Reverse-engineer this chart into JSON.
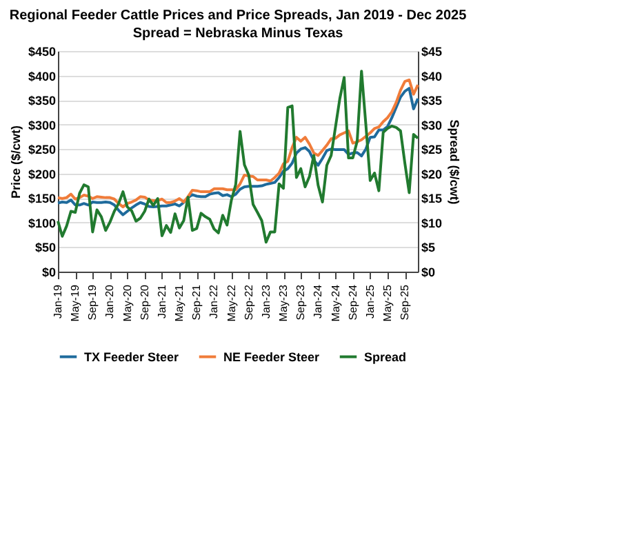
{
  "chart_data": {
    "type": "line",
    "title": "Regional Feeder Cattle Prices and Price Spreads, Jan 2019 - Dec 2025",
    "subtitle": "Spread = Nebraska Minus Texas",
    "ylabel": "Price ($/cwt)",
    "y2label": "Spread ($/cwt)",
    "x": [
      "2019-01",
      "2019-02",
      "2019-03",
      "2019-04",
      "2019-05",
      "2019-06",
      "2019-07",
      "2019-08",
      "2019-09",
      "2019-10",
      "2019-11",
      "2019-12",
      "2020-01",
      "2020-02",
      "2020-03",
      "2020-04",
      "2020-05",
      "2020-06",
      "2020-07",
      "2020-08",
      "2020-09",
      "2020-10",
      "2020-11",
      "2020-12",
      "2021-01",
      "2021-02",
      "2021-03",
      "2021-04",
      "2021-05",
      "2021-06",
      "2021-07",
      "2021-08",
      "2021-09",
      "2021-10",
      "2021-11",
      "2021-12",
      "2022-01",
      "2022-02",
      "2022-03",
      "2022-04",
      "2022-05",
      "2022-06",
      "2022-07",
      "2022-08",
      "2022-09",
      "2022-10",
      "2022-11",
      "2022-12",
      "2023-01",
      "2023-02",
      "2023-03",
      "2023-04",
      "2023-05",
      "2023-06",
      "2023-07",
      "2023-08",
      "2023-09",
      "2023-10",
      "2023-11",
      "2023-12",
      "2024-01",
      "2024-02",
      "2024-03",
      "2024-04",
      "2024-05",
      "2024-06",
      "2024-07",
      "2024-08",
      "2024-09",
      "2024-10",
      "2024-11",
      "2024-12",
      "2025-01",
      "2025-02",
      "2025-03",
      "2025-04",
      "2025-05",
      "2025-06",
      "2025-07",
      "2025-08",
      "2025-09",
      "2025-10",
      "2025-11",
      "2025-12"
    ],
    "series": [
      {
        "name": "TX Feeder Steer",
        "color": "#1f6b9c",
        "values": [
          140,
          142,
          141,
          146,
          136,
          136,
          139,
          136,
          142,
          141,
          141,
          142,
          141,
          136,
          125,
          116,
          123,
          130,
          136,
          141,
          138,
          133,
          132,
          133,
          134,
          134,
          136,
          138,
          134,
          141,
          151,
          157,
          154,
          153,
          153,
          158,
          160,
          161,
          155,
          157,
          153,
          158,
          168,
          173,
          174,
          174,
          174,
          175,
          178,
          180,
          182,
          192,
          205,
          210,
          221,
          242,
          250,
          253,
          245,
          227,
          217,
          231,
          247,
          250,
          249,
          249,
          249,
          239,
          242,
          243,
          236,
          250,
          274,
          275,
          289,
          289,
          296,
          314,
          335,
          356,
          368,
          374,
          332,
          353
        ]
      },
      {
        "name": "NE Feeder Steer",
        "color": "#f07c3a",
        "values": [
          151,
          149,
          151,
          158,
          148,
          151,
          156,
          154,
          149,
          153,
          152,
          151,
          151,
          148,
          139,
          132,
          139,
          142,
          146,
          153,
          152,
          146,
          145,
          145,
          148,
          141,
          141,
          144,
          149,
          142,
          153,
          166,
          165,
          163,
          163,
          163,
          169,
          169,
          169,
          167,
          167,
          167,
          179,
          197,
          195,
          194,
          187,
          187,
          187,
          185,
          192,
          201,
          220,
          225,
          253,
          274,
          266,
          274,
          260,
          242,
          237,
          247,
          258,
          271,
          272,
          279,
          283,
          287,
          262,
          265,
          269,
          276,
          283,
          292,
          295,
          306,
          314,
          326,
          345,
          370,
          388,
          391,
          362,
          381
        ]
      },
      {
        "name": "Spread",
        "color": "#217a2f",
        "axis": "y2",
        "values": [
          10.3,
          7.2,
          9.3,
          12.3,
          12.1,
          16.0,
          17.7,
          17.3,
          8.1,
          12.6,
          11.2,
          8.4,
          10.1,
          12.3,
          13.9,
          16.3,
          13.2,
          12.4,
          10.3,
          10.9,
          12.3,
          14.8,
          13.5,
          14.9,
          7.3,
          9.4,
          8.0,
          11.8,
          8.9,
          10.4,
          15.2,
          8.4,
          8.8,
          11.9,
          11.2,
          10.7,
          8.7,
          7.9,
          11.5,
          9.5,
          14.6,
          17.8,
          28.6,
          21.8,
          19.7,
          13.7,
          12.1,
          10.4,
          6.0,
          8.1,
          8.1,
          17.9,
          17.0,
          33.5,
          33.8,
          19.2,
          21.0,
          17.3,
          19.4,
          23.7,
          17.6,
          14.2,
          21.7,
          23.7,
          29.5,
          35.3,
          39.6,
          23.2,
          23.2,
          26.6,
          40.9,
          30.0,
          18.6,
          20.1,
          16.5,
          28.4,
          29.2,
          29.7,
          29.4,
          28.7,
          22.1,
          16.1,
          28.0,
          27.2
        ]
      }
    ],
    "xlim": [
      "2019-01",
      "2025-12"
    ],
    "xticks": [
      {
        "value": "2019-01",
        "label": "Jan-19"
      },
      {
        "value": "2019-05",
        "label": "May-19"
      },
      {
        "value": "2019-09",
        "label": "Sep-19"
      },
      {
        "value": "2020-01",
        "label": "Jan-20"
      },
      {
        "value": "2020-05",
        "label": "May-20"
      },
      {
        "value": "2020-09",
        "label": "Sep-20"
      },
      {
        "value": "2021-01",
        "label": "Jan-21"
      },
      {
        "value": "2021-05",
        "label": "May-21"
      },
      {
        "value": "2021-09",
        "label": "Sep-21"
      },
      {
        "value": "2022-01",
        "label": "Jan-22"
      },
      {
        "value": "2022-05",
        "label": "May-22"
      },
      {
        "value": "2022-09",
        "label": "Sep-22"
      },
      {
        "value": "2023-01",
        "label": "Jan-23"
      },
      {
        "value": "2023-05",
        "label": "May-23"
      },
      {
        "value": "2023-09",
        "label": "Sep-23"
      },
      {
        "value": "2024-01",
        "label": "Jan-24"
      },
      {
        "value": "2024-05",
        "label": "May-24"
      },
      {
        "value": "2024-09",
        "label": "Sep-24"
      },
      {
        "value": "2025-01",
        "label": "Jan-25"
      },
      {
        "value": "2025-05",
        "label": "May-25"
      },
      {
        "value": "2025-09",
        "label": "Sep-25"
      }
    ],
    "ylim": [
      0,
      450
    ],
    "yticks": [
      {
        "value": 0,
        "label": "$0"
      },
      {
        "value": 50,
        "label": "$50"
      },
      {
        "value": 100,
        "label": "$100"
      },
      {
        "value": 150,
        "label": "$150"
      },
      {
        "value": 200,
        "label": "$200"
      },
      {
        "value": 250,
        "label": "$250"
      },
      {
        "value": 300,
        "label": "$300"
      },
      {
        "value": 350,
        "label": "$350"
      },
      {
        "value": 400,
        "label": "$400"
      },
      {
        "value": 450,
        "label": "$450"
      }
    ],
    "y2lim": [
      0,
      45
    ],
    "y2ticks": [
      {
        "value": 0,
        "label": "$0"
      },
      {
        "value": 5,
        "label": "$5"
      },
      {
        "value": 10,
        "label": "$10"
      },
      {
        "value": 15,
        "label": "$15"
      },
      {
        "value": 20,
        "label": "$20"
      },
      {
        "value": 25,
        "label": "$25"
      },
      {
        "value": 30,
        "label": "$30"
      },
      {
        "value": 35,
        "label": "$35"
      },
      {
        "value": 40,
        "label": "$40"
      },
      {
        "value": 45,
        "label": "$45"
      }
    ],
    "grid": "y",
    "legend": "bottom",
    "marker": "none",
    "line_style": "solid"
  }
}
